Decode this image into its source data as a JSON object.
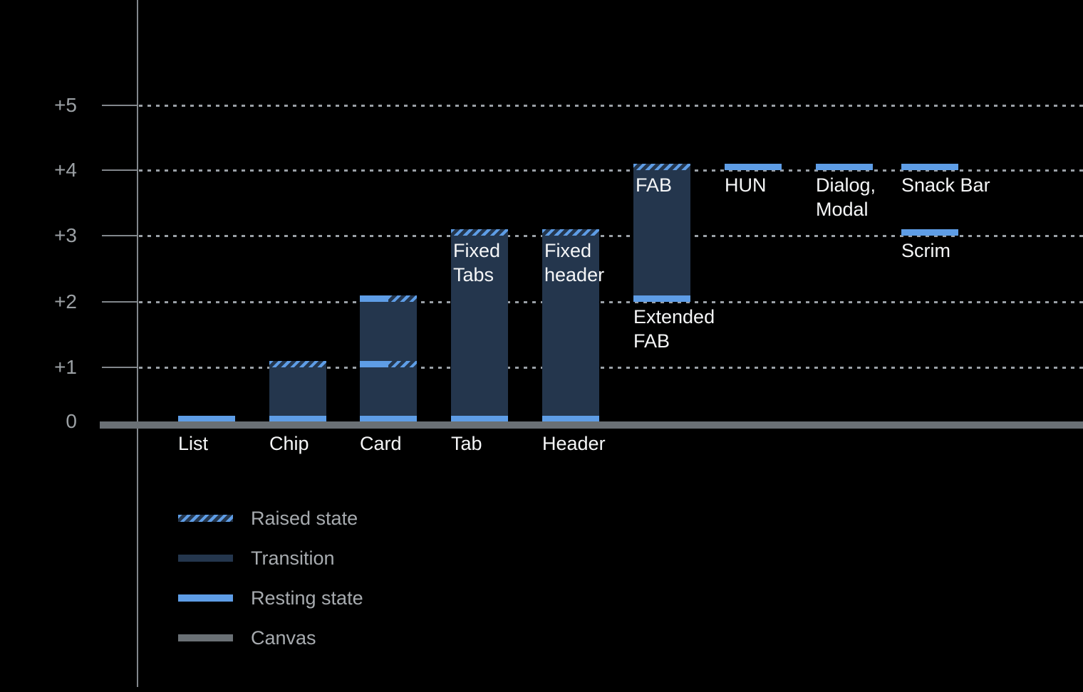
{
  "chart_data": {
    "type": "bar",
    "y_axis": {
      "tick_labels": [
        "0",
        "+1",
        "+2",
        "+3",
        "+4",
        "+5"
      ],
      "tick_values": [
        0,
        1,
        2,
        3,
        4,
        5
      ],
      "range": [
        0,
        5.6
      ],
      "gridlines": "dotted-horizontal"
    },
    "legend_position": "bottom-left",
    "legend": [
      {
        "style": "raised",
        "label": "Raised state"
      },
      {
        "style": "transition",
        "label": "Transition"
      },
      {
        "style": "resting",
        "label": "Resting state"
      },
      {
        "style": "canvas",
        "label": "Canvas"
      }
    ],
    "items": [
      {
        "label": "List",
        "axis_label": "List",
        "resting_strips": [
          [
            0,
            0.1
          ]
        ]
      },
      {
        "label": "Chip",
        "axis_label": "Chip",
        "transition_body": [
          0,
          1.1
        ],
        "resting_strips": [
          [
            0,
            0.1
          ]
        ],
        "raised_strips": [
          [
            1,
            1.1
          ]
        ]
      },
      {
        "label": "Card",
        "axis_label": "Card",
        "transition_body": [
          0,
          2.1
        ],
        "resting_strips": [
          [
            0,
            0.1
          ]
        ],
        "half_strips": [
          [
            1,
            1.1
          ],
          [
            2,
            2.1
          ]
        ]
      },
      {
        "label": "Tab",
        "axis_label": "Tab",
        "inside_lines": [
          "Fixed",
          "Tabs"
        ],
        "transition_body": [
          0,
          3.1
        ],
        "resting_strips": [
          [
            0,
            0.1
          ]
        ],
        "raised_strips": [
          [
            3,
            3.1
          ]
        ]
      },
      {
        "label": "Header",
        "axis_label": "Header",
        "inside_lines": [
          "Fixed",
          "header"
        ],
        "transition_body": [
          0,
          3.1
        ],
        "resting_strips": [
          [
            0,
            0.1
          ]
        ],
        "raised_strips": [
          [
            3,
            3.1
          ]
        ]
      },
      {
        "label": "FAB",
        "inside_lines": [
          "FAB"
        ],
        "below_lines": [
          "Extended",
          "FAB"
        ],
        "transition_body": [
          2,
          4.1
        ],
        "resting_strips": [
          [
            2,
            2.1
          ]
        ],
        "raised_strips": [
          [
            4,
            4.1
          ]
        ]
      },
      {
        "label": "HUN",
        "below_lines": [
          "HUN"
        ],
        "resting_strips": [
          [
            4,
            4.1
          ]
        ]
      },
      {
        "label": "Dialog, Modal",
        "below_lines": [
          "Dialog,",
          "Modal"
        ],
        "resting_strips": [
          [
            4,
            4.1
          ]
        ]
      },
      {
        "label": "Snack Bar",
        "below_lines": [
          "Snack Bar"
        ],
        "resting_strips": [
          [
            4,
            4.1
          ]
        ]
      },
      {
        "label": "Scrim",
        "below_lines": [
          "Scrim"
        ],
        "resting_strips": [
          [
            3,
            3.1
          ]
        ]
      }
    ]
  },
  "colors": {
    "background": "#000000",
    "resting_state": "#5E9DE6",
    "transition": "#24364D",
    "canvas": "#6A7075",
    "axis": "#82878C",
    "gridline": "#9AA0A6",
    "axis_label": "#9BA0A4",
    "bar_label": "#F5F6F7",
    "legend_label": "#A7ABAF"
  }
}
